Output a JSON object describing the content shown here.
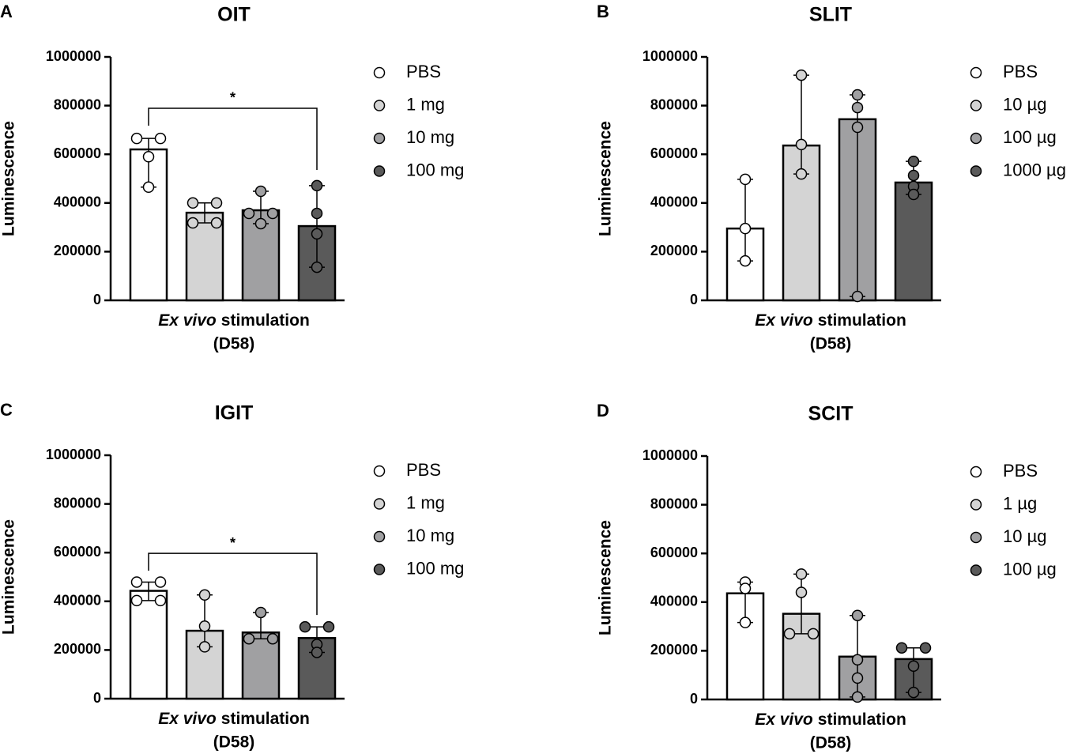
{
  "chart_data": [
    {
      "panel_label": "A",
      "type": "bar",
      "title": "OIT",
      "ylabel": "Luminescence",
      "xlabel_italic": "Ex vivo",
      "xlabel": "stimulation",
      "xlabel_line2": "(D58)",
      "ylim": [
        0,
        1000000
      ],
      "yticks": [
        0,
        200000,
        400000,
        600000,
        800000,
        1000000
      ],
      "series": [
        {
          "name": "PBS",
          "color": "#ffffff",
          "values": [
            620000
          ],
          "points": [
            665000,
            665000,
            590000,
            465000
          ]
        },
        {
          "name": "1 mg",
          "color": "#d4d4d4",
          "values": [
            360000
          ],
          "points": [
            400000,
            400000,
            318000,
            318000
          ]
        },
        {
          "name": "10 mg",
          "color": "#a0a0a2",
          "values": [
            370000
          ],
          "points": [
            448000,
            357000,
            357000,
            315000
          ]
        },
        {
          "name": "100 mg",
          "color": "#5a5a5a",
          "values": [
            305000
          ],
          "points": [
            471000,
            357000,
            273000,
            136000
          ]
        }
      ],
      "annotations": [
        {
          "label": "*",
          "from": 0,
          "to": 3,
          "y": 789000
        }
      ]
    },
    {
      "panel_label": "B",
      "type": "bar",
      "title": "SLIT",
      "ylabel": "Luminescence",
      "xlabel_italic": "Ex vivo",
      "xlabel": "stimulation",
      "xlabel_line2": "(D58)",
      "ylim": [
        0,
        1000000
      ],
      "yticks": [
        0,
        200000,
        400000,
        600000,
        800000,
        1000000
      ],
      "series": [
        {
          "name": "PBS",
          "color": "#ffffff",
          "values": [
            295000
          ],
          "points": [
            497000,
            295000,
            162000
          ]
        },
        {
          "name": "10 µg",
          "color": "#d4d4d4",
          "values": [
            636000
          ],
          "points": [
            925000,
            640000,
            519000
          ]
        },
        {
          "name": "100 µg",
          "color": "#a0a0a2",
          "values": [
            744000
          ],
          "points": [
            844000,
            792000,
            711000,
            16000
          ]
        },
        {
          "name": "1000 µg",
          "color": "#5a5a5a",
          "values": [
            484000
          ],
          "points": [
            571000,
            513000,
            468000,
            435000
          ]
        }
      ],
      "annotations": []
    },
    {
      "panel_label": "C",
      "type": "bar",
      "title": "IGIT",
      "ylabel": "Luminescence",
      "xlabel_italic": "Ex vivo",
      "xlabel": "stimulation",
      "xlabel_line2": "(D58)",
      "ylim": [
        0,
        1000000
      ],
      "yticks": [
        0,
        200000,
        400000,
        600000,
        800000,
        1000000
      ],
      "series": [
        {
          "name": "PBS",
          "color": "#ffffff",
          "values": [
            443000
          ],
          "points": [
            479000,
            479000,
            403000,
            403000
          ]
        },
        {
          "name": "1 mg",
          "color": "#d4d4d4",
          "values": [
            279000
          ],
          "points": [
            426000,
            298000,
            213000
          ]
        },
        {
          "name": "10 mg",
          "color": "#a0a0a2",
          "values": [
            272000
          ],
          "points": [
            354000,
            246000,
            246000
          ]
        },
        {
          "name": "100 mg",
          "color": "#5a5a5a",
          "values": [
            249000
          ],
          "points": [
            295000,
            295000,
            223000,
            190000
          ]
        }
      ],
      "annotations": [
        {
          "label": "*",
          "from": 0,
          "to": 3,
          "y": 597000
        }
      ]
    },
    {
      "panel_label": "D",
      "type": "bar",
      "title": "SCIT",
      "ylabel": "Luminescence",
      "xlabel_italic": "Ex vivo",
      "xlabel": "stimulation",
      "xlabel_line2": "(D58)",
      "ylim": [
        0,
        1000000
      ],
      "yticks": [
        0,
        200000,
        400000,
        600000,
        800000,
        1000000
      ],
      "series": [
        {
          "name": "PBS",
          "color": "#ffffff",
          "values": [
            436000
          ],
          "points": [
            482000,
            456000,
            316000
          ]
        },
        {
          "name": "1 µg",
          "color": "#d4d4d4",
          "values": [
            352000
          ],
          "points": [
            515000,
            440000,
            270000,
            270000
          ]
        },
        {
          "name": "10 µg",
          "color": "#a0a0a2",
          "values": [
            176000
          ],
          "points": [
            345000,
            163000,
            88000,
            10000
          ]
        },
        {
          "name": "100 µg",
          "color": "#5a5a5a",
          "values": [
            166000
          ],
          "points": [
            212000,
            212000,
            137000,
            29000
          ]
        }
      ],
      "annotations": []
    }
  ]
}
